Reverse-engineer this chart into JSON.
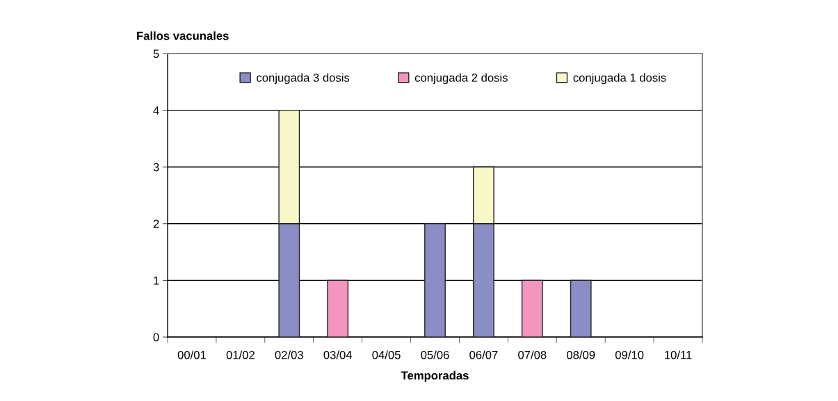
{
  "chart_data": {
    "type": "bar",
    "stacked": true,
    "ylabel": "Fallos vacunales",
    "xlabel": "Temporadas",
    "categories": [
      "00/01",
      "01/02",
      "02/03",
      "03/04",
      "04/05",
      "05/06",
      "06/07",
      "07/08",
      "08/09",
      "09/10",
      "10/11"
    ],
    "series": [
      {
        "name": "conjugada 3 dosis",
        "color": "#8b8ec4",
        "values": [
          0,
          0,
          2,
          0,
          0,
          2,
          2,
          0,
          1,
          0,
          0
        ]
      },
      {
        "name": "conjugada 2 dosis",
        "color": "#f395bd",
        "values": [
          0,
          0,
          0,
          1,
          0,
          0,
          0,
          1,
          0,
          0,
          0
        ]
      },
      {
        "name": "conjugada 1 dosis",
        "color": "#f9f8c8",
        "values": [
          0,
          0,
          2,
          0,
          0,
          0,
          1,
          0,
          0,
          0,
          0
        ]
      }
    ],
    "ylim": [
      0,
      5
    ],
    "yticks": [
      0,
      1,
      2,
      3,
      4,
      5
    ],
    "grid": "y",
    "legend": "top"
  }
}
